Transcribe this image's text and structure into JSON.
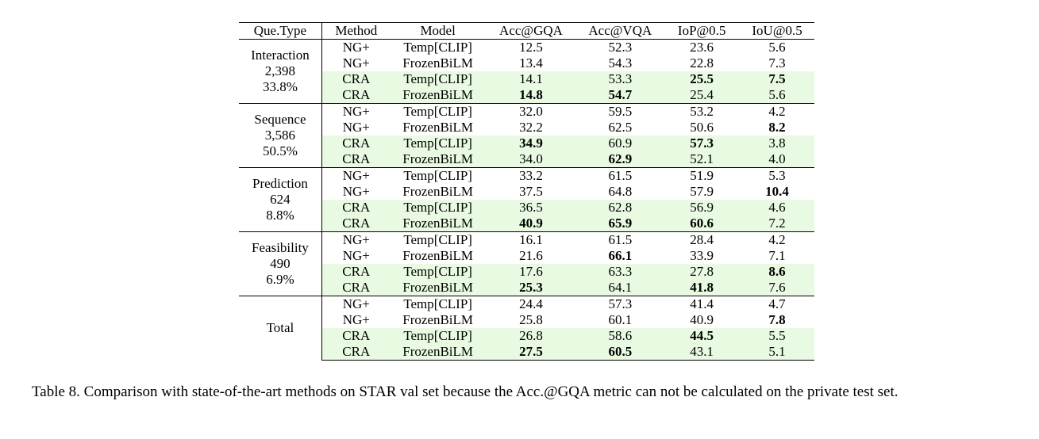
{
  "table": {
    "headers": [
      "Que.Type",
      "Method",
      "Model",
      "Acc@GQA",
      "Acc@VQA",
      "IoP@0.5",
      "IoU@0.5"
    ],
    "groups": [
      {
        "qtype": [
          "Interaction",
          "2,398",
          "33.8%"
        ],
        "rows": [
          {
            "method": "NG+",
            "model": "Temp[CLIP]",
            "values": [
              "12.5",
              "52.3",
              "23.6",
              "5.6"
            ],
            "bold": [
              false,
              false,
              false,
              false
            ]
          },
          {
            "method": "NG+",
            "model": "FrozenBiLM",
            "values": [
              "13.4",
              "54.3",
              "22.8",
              "7.3"
            ],
            "bold": [
              false,
              false,
              false,
              false
            ]
          },
          {
            "method": "CRA",
            "model": "Temp[CLIP]",
            "values": [
              "14.1",
              "53.3",
              "25.5",
              "7.5"
            ],
            "bold": [
              false,
              false,
              true,
              true
            ]
          },
          {
            "method": "CRA",
            "model": "FrozenBiLM",
            "values": [
              "14.8",
              "54.7",
              "25.4",
              "5.6"
            ],
            "bold": [
              true,
              true,
              false,
              false
            ]
          }
        ]
      },
      {
        "qtype": [
          "Sequence",
          "3,586",
          "50.5%"
        ],
        "rows": [
          {
            "method": "NG+",
            "model": "Temp[CLIP]",
            "values": [
              "32.0",
              "59.5",
              "53.2",
              "4.2"
            ],
            "bold": [
              false,
              false,
              false,
              false
            ]
          },
          {
            "method": "NG+",
            "model": "FrozenBiLM",
            "values": [
              "32.2",
              "62.5",
              "50.6",
              "8.2"
            ],
            "bold": [
              false,
              false,
              false,
              true
            ]
          },
          {
            "method": "CRA",
            "model": "Temp[CLIP]",
            "values": [
              "34.9",
              "60.9",
              "57.3",
              "3.8"
            ],
            "bold": [
              true,
              false,
              true,
              false
            ]
          },
          {
            "method": "CRA",
            "model": "FrozenBiLM",
            "values": [
              "34.0",
              "62.9",
              "52.1",
              "4.0"
            ],
            "bold": [
              false,
              true,
              false,
              false
            ]
          }
        ]
      },
      {
        "qtype": [
          "Prediction",
          "624",
          "8.8%"
        ],
        "rows": [
          {
            "method": "NG+",
            "model": "Temp[CLIP]",
            "values": [
              "33.2",
              "61.5",
              "51.9",
              "5.3"
            ],
            "bold": [
              false,
              false,
              false,
              false
            ]
          },
          {
            "method": "NG+",
            "model": "FrozenBiLM",
            "values": [
              "37.5",
              "64.8",
              "57.9",
              "10.4"
            ],
            "bold": [
              false,
              false,
              false,
              true
            ]
          },
          {
            "method": "CRA",
            "model": "Temp[CLIP]",
            "values": [
              "36.5",
              "62.8",
              "56.9",
              "4.6"
            ],
            "bold": [
              false,
              false,
              false,
              false
            ]
          },
          {
            "method": "CRA",
            "model": "FrozenBiLM",
            "values": [
              "40.9",
              "65.9",
              "60.6",
              "7.2"
            ],
            "bold": [
              true,
              true,
              true,
              false
            ]
          }
        ]
      },
      {
        "qtype": [
          "Feasibility",
          "490",
          "6.9%"
        ],
        "rows": [
          {
            "method": "NG+",
            "model": "Temp[CLIP]",
            "values": [
              "16.1",
              "61.5",
              "28.4",
              "4.2"
            ],
            "bold": [
              false,
              false,
              false,
              false
            ]
          },
          {
            "method": "NG+",
            "model": "FrozenBiLM",
            "values": [
              "21.6",
              "66.1",
              "33.9",
              "7.1"
            ],
            "bold": [
              false,
              true,
              false,
              false
            ]
          },
          {
            "method": "CRA",
            "model": "Temp[CLIP]",
            "values": [
              "17.6",
              "63.3",
              "27.8",
              "8.6"
            ],
            "bold": [
              false,
              false,
              false,
              true
            ]
          },
          {
            "method": "CRA",
            "model": "FrozenBiLM",
            "values": [
              "25.3",
              "64.1",
              "41.8",
              "7.6"
            ],
            "bold": [
              true,
              false,
              true,
              false
            ]
          }
        ]
      },
      {
        "qtype": [
          "Total"
        ],
        "rows": [
          {
            "method": "NG+",
            "model": "Temp[CLIP]",
            "values": [
              "24.4",
              "57.3",
              "41.4",
              "4.7"
            ],
            "bold": [
              false,
              false,
              false,
              false
            ]
          },
          {
            "method": "NG+",
            "model": "FrozenBiLM",
            "values": [
              "25.8",
              "60.1",
              "40.9",
              "7.8"
            ],
            "bold": [
              false,
              false,
              false,
              true
            ]
          },
          {
            "method": "CRA",
            "model": "Temp[CLIP]",
            "values": [
              "26.8",
              "58.6",
              "44.5",
              "5.5"
            ],
            "bold": [
              false,
              false,
              true,
              false
            ]
          },
          {
            "method": "CRA",
            "model": "FrozenBiLM",
            "values": [
              "27.5",
              "60.5",
              "43.1",
              "5.1"
            ],
            "bold": [
              true,
              true,
              false,
              false
            ]
          }
        ]
      }
    ],
    "highlight_color": "#e9fae2"
  },
  "caption": "Table 8. Comparison with state-of-the-art methods on STAR val set because the Acc.@GQA metric can not be calculated on the private test set."
}
